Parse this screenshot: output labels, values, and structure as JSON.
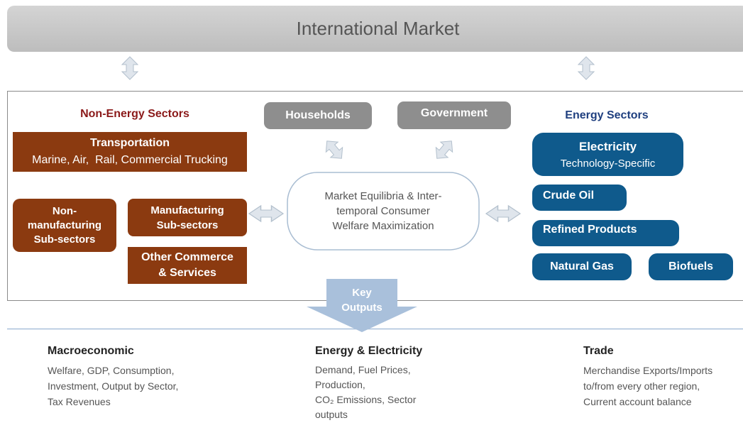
{
  "header": {
    "title": "International Market"
  },
  "non_energy": {
    "title": "Non-Energy Sectors",
    "transportation": {
      "title": "Transportation",
      "subtitle": "Marine, Air,  Rail, Commercial Trucking"
    },
    "non_manufacturing": {
      "lines": [
        "Non-",
        "manufacturing",
        "Sub-sectors"
      ]
    },
    "manufacturing": {
      "lines": [
        "Manufacturing",
        "Sub-sectors"
      ]
    },
    "other_commerce": {
      "lines": [
        "Other Commerce",
        "& Services"
      ]
    }
  },
  "agents": {
    "households": "Households",
    "government": "Government"
  },
  "center": {
    "lines": [
      "Market Equilibria & Inter-",
      "temporal Consumer",
      "Welfare Maximization"
    ]
  },
  "energy": {
    "title": "Energy Sectors",
    "electricity": {
      "title": "Electricity",
      "subtitle": "Technology-Specific"
    },
    "crude_oil": "Crude Oil",
    "refined_products": "Refined Products",
    "natural_gas": "Natural Gas",
    "biofuels": "Biofuels"
  },
  "key_outputs": {
    "lines": [
      "Key",
      "Outputs"
    ]
  },
  "outputs": [
    {
      "title": "Macroeconomic",
      "lines": [
        "Welfare, GDP, Consumption,",
        "Investment, Output by Sector,",
        "Tax Revenues"
      ]
    },
    {
      "title": "Energy & Electricity",
      "lines": [
        "Demand, Fuel Prices,",
        "Production,",
        "CO₂ Emissions, Sector",
        "outputs"
      ]
    },
    {
      "title": "Trade",
      "lines": [
        "Merchandise Exports/Imports",
        "to/from every other region,",
        "Current account balance"
      ]
    }
  ]
}
